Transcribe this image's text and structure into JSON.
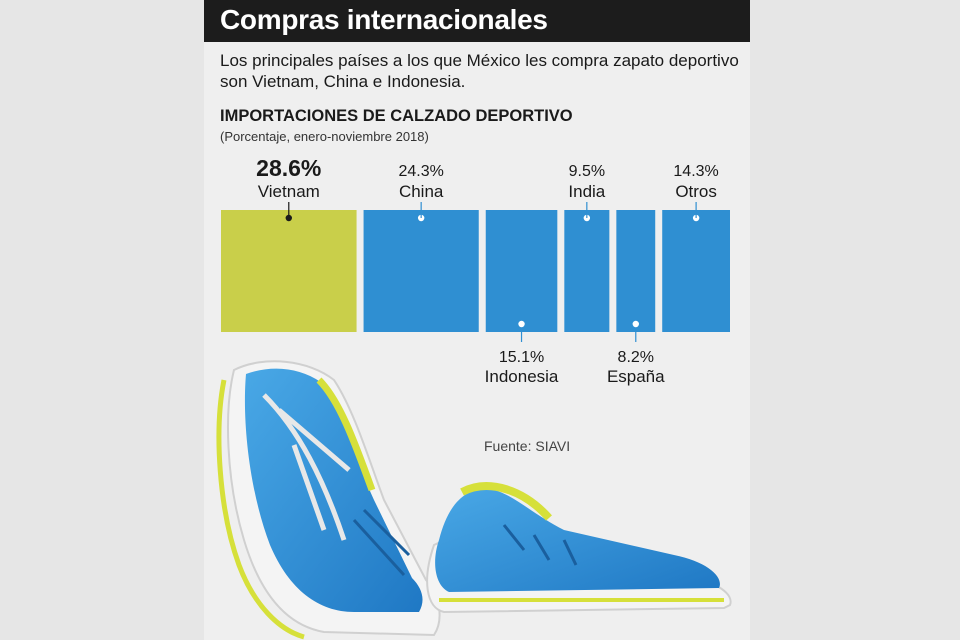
{
  "header": {
    "title": "Compras internacionales",
    "subtitle": "Los principales países a los que México les compra zapato deportivo son Vietnam, China e Indonesia."
  },
  "chart_data": {
    "type": "bar",
    "title": "IMPORTACIONES DE CALZADO DEPORTIVO",
    "subtitle": "(Porcentaje, enero-noviembre 2018)",
    "unit": "%",
    "categories": [
      "Vietnam",
      "China",
      "Indonesia",
      "India",
      "España",
      "Otros"
    ],
    "values": [
      28.6,
      24.3,
      15.1,
      9.5,
      8.2,
      14.3
    ],
    "value_labels": [
      "28.6%",
      "24.3%",
      "15.1%",
      "9.5%",
      "8.2%",
      "14.3%"
    ],
    "label_position": [
      "top",
      "top",
      "bottom",
      "top",
      "bottom",
      "top"
    ],
    "highlight_color": "#c9cf4a",
    "bar_color": "#2f8fd2"
  },
  "source": "Fuente: SIAVI"
}
